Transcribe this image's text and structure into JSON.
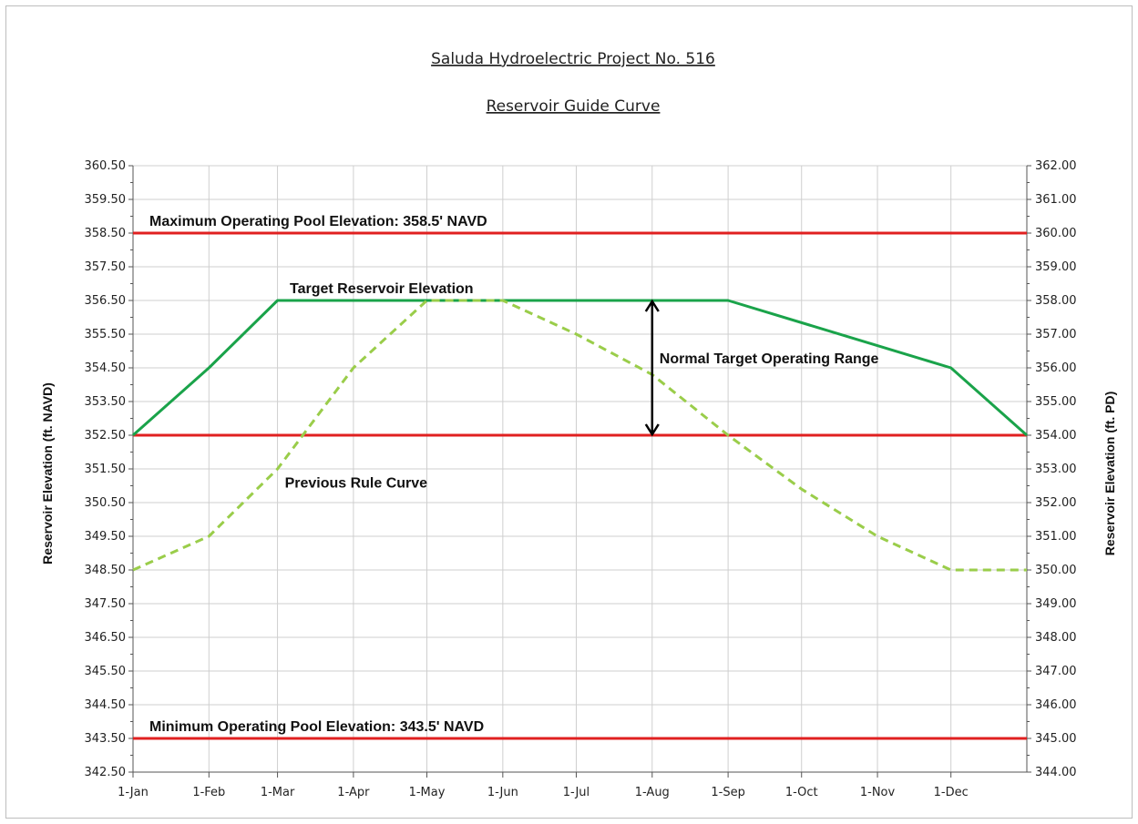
{
  "chart_data": {
    "type": "line",
    "title": "Saluda Hydroelectric Project No. 516",
    "subtitle": "Reservoir Guide Curve",
    "ylabel": "Reservoir Elevation (ft. NAVD)",
    "y2label": "Reservoir Elevation (ft. PD)",
    "ylim": [
      342.5,
      360.5
    ],
    "y2lim": [
      344.0,
      362.0
    ],
    "yticks": [
      "342.50",
      "343.50",
      "344.50",
      "345.50",
      "346.50",
      "347.50",
      "348.50",
      "349.50",
      "350.50",
      "351.50",
      "352.50",
      "353.50",
      "354.50",
      "355.50",
      "356.50",
      "357.50",
      "358.50",
      "359.50",
      "360.50"
    ],
    "y2ticks": [
      "344.00",
      "345.00",
      "346.00",
      "347.00",
      "348.00",
      "349.00",
      "350.00",
      "351.00",
      "352.00",
      "353.00",
      "354.00",
      "355.00",
      "356.00",
      "357.00",
      "358.00",
      "359.00",
      "360.00",
      "361.00",
      "362.00"
    ],
    "xlim": [
      0,
      365
    ],
    "xticks": [
      {
        "label": "1-Jan",
        "day": 0
      },
      {
        "label": "1-Feb",
        "day": 31
      },
      {
        "label": "1-Mar",
        "day": 59
      },
      {
        "label": "1-Apr",
        "day": 90
      },
      {
        "label": "1-May",
        "day": 120
      },
      {
        "label": "1-Jun",
        "day": 151
      },
      {
        "label": "1-Jul",
        "day": 181
      },
      {
        "label": "1-Aug",
        "day": 212
      },
      {
        "label": "1-Sep",
        "day": 243
      },
      {
        "label": "1-Oct",
        "day": 273
      },
      {
        "label": "1-Nov",
        "day": 304
      },
      {
        "label": "1-Dec",
        "day": 334
      }
    ],
    "grid": true,
    "series": [
      {
        "name": "Target Reservoir Elevation",
        "color": "#1aa34a",
        "style": "solid",
        "x": [
          0,
          31,
          59,
          243,
          334,
          365
        ],
        "y": [
          352.5,
          354.5,
          356.5,
          356.5,
          354.5,
          352.5
        ]
      },
      {
        "name": "Previous Rule Curve",
        "color": "#9acd4a",
        "style": "dashed",
        "x": [
          0,
          31,
          59,
          90,
          120,
          151,
          181,
          212,
          243,
          273,
          304,
          334,
          365
        ],
        "y": [
          348.5,
          349.5,
          351.5,
          354.5,
          356.5,
          356.5,
          355.5,
          354.3,
          352.5,
          350.9,
          349.5,
          348.5,
          348.5
        ]
      }
    ],
    "reference_lines": [
      {
        "label": "Maximum Operating Pool Elevation: 358.5' NAVD",
        "y": 358.5,
        "color": "#e02020"
      },
      {
        "label": "",
        "y": 352.5,
        "color": "#e02020"
      },
      {
        "label": "Minimum Operating Pool Elevation: 343.5' NAVD",
        "y": 343.5,
        "color": "#e02020"
      }
    ],
    "range_arrow": {
      "label": "Normal Target Operating Range",
      "day": 212,
      "from": 352.5,
      "to": 356.5
    }
  }
}
